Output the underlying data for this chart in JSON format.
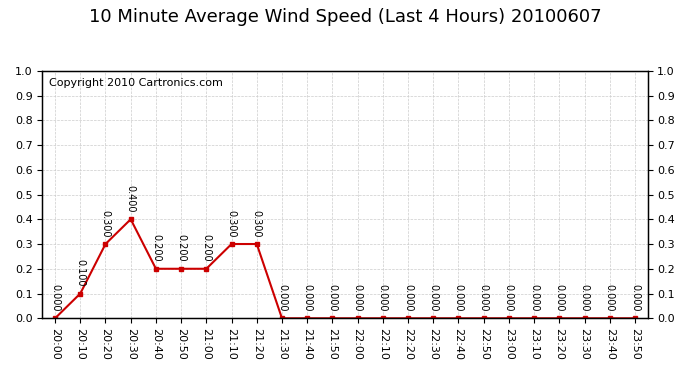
{
  "title": "10 Minute Average Wind Speed (Last 4 Hours) 20100607",
  "copyright": "Copyright 2010 Cartronics.com",
  "x_labels": [
    "20:00",
    "20:10",
    "20:20",
    "20:30",
    "20:40",
    "20:50",
    "21:00",
    "21:10",
    "21:20",
    "21:30",
    "21:40",
    "21:50",
    "22:00",
    "22:10",
    "22:20",
    "22:30",
    "22:40",
    "22:50",
    "23:00",
    "23:10",
    "23:20",
    "23:30",
    "23:40",
    "23:50"
  ],
  "y_values": [
    0.0,
    0.1,
    0.3,
    0.4,
    0.2,
    0.2,
    0.2,
    0.3,
    0.3,
    0.0,
    0.0,
    0.0,
    0.0,
    0.0,
    0.0,
    0.0,
    0.0,
    0.0,
    0.0,
    0.0,
    0.0,
    0.0,
    0.0,
    0.0
  ],
  "line_color": "#cc0000",
  "marker_color": "#cc0000",
  "bg_color": "#ffffff",
  "plot_bg_color": "#ffffff",
  "grid_color": "#cccccc",
  "ylim": [
    0.0,
    1.0
  ],
  "yticks_left": [
    0.0,
    0.1,
    0.2,
    0.3,
    0.4,
    0.5,
    0.6,
    0.7,
    0.8,
    0.9,
    1.0
  ],
  "yticks_right": [
    0.0,
    0.1,
    0.2,
    0.3,
    0.4,
    0.5,
    0.6,
    0.7,
    0.8,
    0.9,
    1.0
  ],
  "title_fontsize": 13,
  "annotation_fontsize": 7,
  "tick_fontsize": 8,
  "copyright_fontsize": 8
}
